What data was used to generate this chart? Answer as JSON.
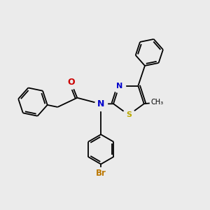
{
  "background_color": "#ebebeb",
  "atom_colors": {
    "C": "#000000",
    "N": "#0000cc",
    "O": "#cc0000",
    "S": "#bbaa00",
    "Br": "#bb7700"
  },
  "line_color": "#000000",
  "line_width": 1.3
}
